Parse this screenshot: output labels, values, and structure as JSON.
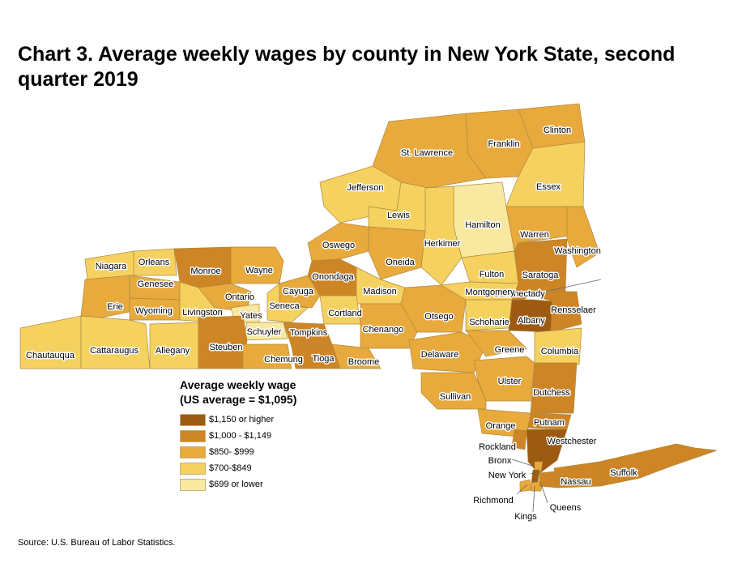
{
  "title": "Chart 3. Average weekly wages by county in New York State, second quarter 2019",
  "source": "Source: U.S. Bureau of Labor Statistics.",
  "legend": {
    "title_line1": "Average weekly wage",
    "title_line2": "(US average = $1,095)",
    "items": [
      {
        "label": "$1,150 or higher",
        "color": "#9c5a12"
      },
      {
        "label": "$1,000 - $1,149",
        "color": "#cd8525"
      },
      {
        "label": "$850- $999",
        "color": "#e8aa3c"
      },
      {
        "label": "$700-$849",
        "color": "#f5d160"
      },
      {
        "label": "$699 or lower",
        "color": "#f8e8a0"
      }
    ]
  },
  "counties": [
    {
      "name": "Clinton",
      "class": 3
    },
    {
      "name": "Franklin",
      "class": 3
    },
    {
      "name": "St. Lawrence",
      "class": 3
    },
    {
      "name": "Essex",
      "class": 4
    },
    {
      "name": "Jefferson",
      "class": 4
    },
    {
      "name": "Lewis",
      "class": 4
    },
    {
      "name": "Hamilton",
      "class": 5
    },
    {
      "name": "Herkimer",
      "class": 4
    },
    {
      "name": "Warren",
      "class": 3
    },
    {
      "name": "Washington",
      "class": 3
    },
    {
      "name": "Oswego",
      "class": 3
    },
    {
      "name": "Oneida",
      "class": 3
    },
    {
      "name": "Fulton",
      "class": 4
    },
    {
      "name": "Saratoga",
      "class": 2
    },
    {
      "name": "Schenectady",
      "class": 2
    },
    {
      "name": "Montgomery",
      "class": 4
    },
    {
      "name": "Niagara",
      "class": 4
    },
    {
      "name": "Orleans",
      "class": 4
    },
    {
      "name": "Monroe",
      "class": 2
    },
    {
      "name": "Wayne",
      "class": 3
    },
    {
      "name": "Onondaga",
      "class": 2
    },
    {
      "name": "Genesee",
      "class": 3
    },
    {
      "name": "Ontario",
      "class": 3
    },
    {
      "name": "Cayuga",
      "class": 3
    },
    {
      "name": "Madison",
      "class": 4
    },
    {
      "name": "Erie",
      "class": 3
    },
    {
      "name": "Wyoming",
      "class": 3
    },
    {
      "name": "Livingston",
      "class": 4
    },
    {
      "name": "Yates",
      "class": 5
    },
    {
      "name": "Seneca",
      "class": 4
    },
    {
      "name": "Cortland",
      "class": 4
    },
    {
      "name": "Otsego",
      "class": 3
    },
    {
      "name": "Schoharie",
      "class": 4
    },
    {
      "name": "Albany",
      "class": 1
    },
    {
      "name": "Rensselaer",
      "class": 2
    },
    {
      "name": "Schuyler",
      "class": 5
    },
    {
      "name": "Tompkins",
      "class": 2
    },
    {
      "name": "Chenango",
      "class": 3
    },
    {
      "name": "Chautauqua",
      "class": 4
    },
    {
      "name": "Cattaraugus",
      "class": 4
    },
    {
      "name": "Allegany",
      "class": 4
    },
    {
      "name": "Steuben",
      "class": 2
    },
    {
      "name": "Chemung",
      "class": 3
    },
    {
      "name": "Tioga",
      "class": 2
    },
    {
      "name": "Broome",
      "class": 3
    },
    {
      "name": "Delaware",
      "class": 3
    },
    {
      "name": "Greene",
      "class": 3
    },
    {
      "name": "Columbia",
      "class": 4
    },
    {
      "name": "Ulster",
      "class": 3
    },
    {
      "name": "Dutchess",
      "class": 2
    },
    {
      "name": "Sullivan",
      "class": 3
    },
    {
      "name": "Orange",
      "class": 3
    },
    {
      "name": "Putnam",
      "class": 2
    },
    {
      "name": "Rockland",
      "class": 2
    },
    {
      "name": "Westchester",
      "class": 1
    },
    {
      "name": "Bronx",
      "class": 3
    },
    {
      "name": "New York",
      "class": 1
    },
    {
      "name": "Richmond",
      "class": 3
    },
    {
      "name": "Kings",
      "class": 3
    },
    {
      "name": "Queens",
      "class": 2
    },
    {
      "name": "Nassau",
      "class": 2
    },
    {
      "name": "Suffolk",
      "class": 2
    }
  ]
}
